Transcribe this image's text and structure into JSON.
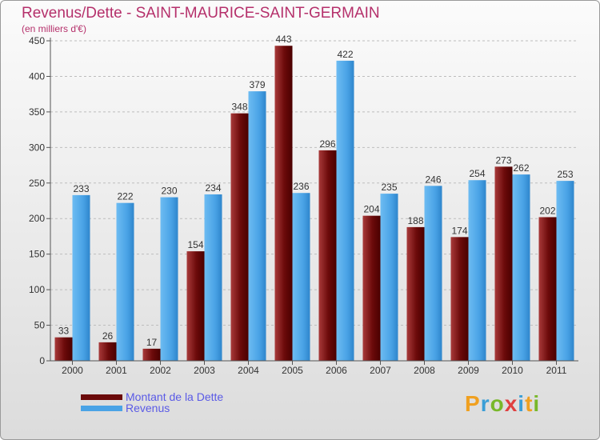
{
  "chart_data": {
    "type": "bar",
    "title": "Revenus/Dette - SAINT-MAURICE-SAINT-GERMAIN",
    "subtitle": "(en milliers d'€)",
    "categories": [
      "2000",
      "2001",
      "2002",
      "2003",
      "2004",
      "2005",
      "2006",
      "2007",
      "2008",
      "2009",
      "2010",
      "2011"
    ],
    "series": [
      {
        "name": "Montant de la Dette",
        "color": "#7a1010",
        "values": [
          33,
          26,
          17,
          154,
          348,
          443,
          296,
          204,
          188,
          174,
          273,
          202
        ]
      },
      {
        "name": "Revenus",
        "color": "#4aa3e6",
        "values": [
          233,
          222,
          230,
          234,
          379,
          236,
          422,
          235,
          246,
          254,
          262,
          253
        ]
      }
    ],
    "ylim": [
      0,
      450
    ],
    "yticks": [
      0,
      50,
      100,
      150,
      200,
      250,
      300,
      350,
      400,
      450
    ],
    "grid": "horizontal dashed",
    "legend": "bottom-left"
  },
  "logo": {
    "letters": [
      "P",
      "r",
      "o",
      "x",
      "i",
      "t",
      "i"
    ]
  }
}
